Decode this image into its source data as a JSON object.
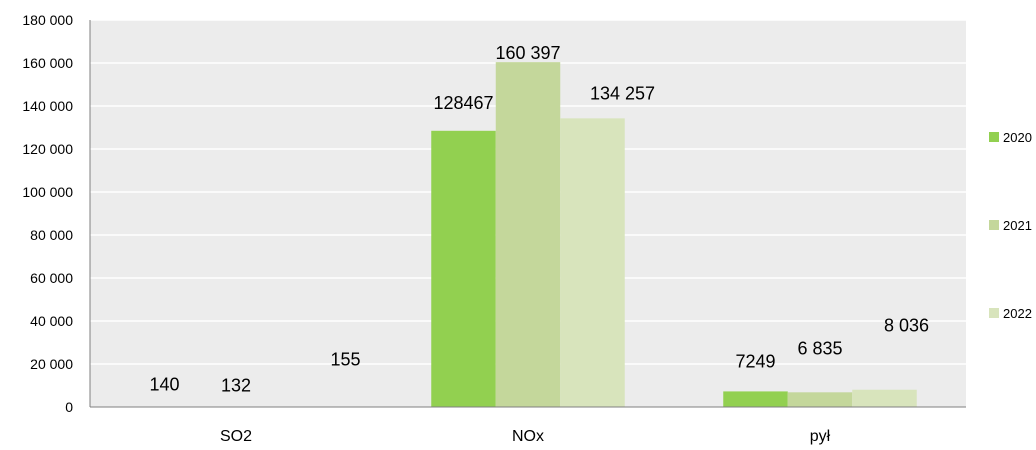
{
  "chart_data": {
    "type": "bar",
    "title": "",
    "xlabel": "",
    "ylabel": "",
    "ylim": [
      0,
      180000
    ],
    "y_ticks": [
      "0",
      "20 000",
      "40 000",
      "60 000",
      "80 000",
      "100 000",
      "120 000",
      "140 000",
      "160 000",
      "180 000"
    ],
    "grid": true,
    "legend_position": "right",
    "categories": [
      "SO2",
      "NOx",
      "pył"
    ],
    "series": [
      {
        "name": "2020",
        "color": "#92d050",
        "values": [
          140,
          128467,
          7249
        ],
        "labels": [
          "140",
          "128467",
          "7249"
        ]
      },
      {
        "name": "2021",
        "color": "#c4d79b",
        "values": [
          132,
          160397,
          6835
        ],
        "labels": [
          "132",
          "160 397",
          "6 835"
        ]
      },
      {
        "name": "2022",
        "color": "#d8e4bc",
        "values": [
          155,
          134257,
          8036
        ],
        "labels": [
          "155",
          "134 257",
          "8 036"
        ]
      }
    ]
  },
  "colors": {
    "plot_background": "#ececec",
    "gridline": "#ffffff",
    "axis": "#7f7f7f"
  }
}
